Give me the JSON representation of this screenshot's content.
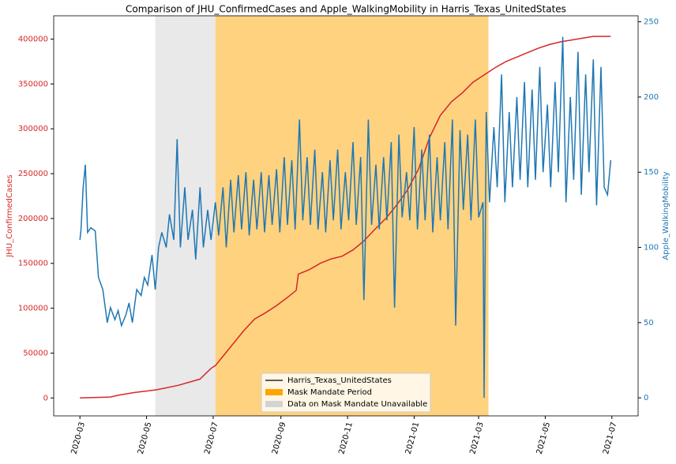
{
  "chart_data": {
    "type": "line",
    "title": "Comparison of JHU_ConfirmedCases and Apple_WalkingMobility in Harris_Texas_UnitedStates",
    "xlim": [
      -24,
      511
    ],
    "xticks": [
      {
        "value": 0,
        "label": "2020-03"
      },
      {
        "value": 61,
        "label": "2020-05"
      },
      {
        "value": 122,
        "label": "2020-07"
      },
      {
        "value": 184,
        "label": "2020-09"
      },
      {
        "value": 245,
        "label": "2020-11"
      },
      {
        "value": 306,
        "label": "2021-01"
      },
      {
        "value": 365,
        "label": "2021-03"
      },
      {
        "value": 426,
        "label": "2021-05"
      },
      {
        "value": 487,
        "label": "2021-07"
      }
    ],
    "ylim": [
      -20000,
      426000
    ],
    "yticks": [
      0,
      50000,
      100000,
      150000,
      200000,
      250000,
      300000,
      350000,
      400000
    ],
    "y2lim": [
      -12,
      254
    ],
    "y2ticks": [
      0,
      50,
      100,
      150,
      200,
      250
    ],
    "series": [
      {
        "name": "JHU_ConfirmedCases",
        "color": "#d62728",
        "x": [
          0,
          28,
          35,
          50,
          70,
          90,
          110,
          120,
          124,
          130,
          140,
          150,
          160,
          170,
          180,
          190,
          198,
          200,
          210,
          220,
          230,
          240,
          250,
          260,
          270,
          280,
          290,
          300,
          310,
          320,
          330,
          340,
          350,
          360,
          370,
          380,
          390,
          400,
          410,
          420,
          430,
          440,
          450,
          460,
          470,
          480,
          486
        ],
        "values": [
          0,
          1000,
          3000,
          6000,
          9000,
          14000,
          21000,
          33000,
          36000,
          45000,
          60000,
          75000,
          88000,
          95000,
          103000,
          112000,
          120000,
          138000,
          143000,
          150000,
          155000,
          158000,
          165000,
          175000,
          188000,
          200000,
          215000,
          232000,
          255000,
          290000,
          315000,
          330000,
          340000,
          352000,
          360000,
          368000,
          375000,
          380000,
          385000,
          390000,
          394000,
          397000,
          399000,
          401000,
          403000,
          403000,
          403000
        ]
      },
      {
        "name": "Apple_WalkingMobility",
        "color": "#1f77b4",
        "axis": "y2",
        "x": [
          0,
          1,
          3,
          5,
          7,
          10,
          14,
          17,
          21,
          25,
          28,
          32,
          35,
          38,
          42,
          45,
          48,
          52,
          56,
          59,
          62,
          66,
          69,
          72,
          75,
          79,
          82,
          86,
          89,
          92,
          96,
          99,
          103,
          106,
          110,
          113,
          117,
          120,
          124,
          127,
          131,
          134,
          138,
          141,
          145,
          148,
          152,
          155,
          159,
          162,
          166,
          169,
          173,
          176,
          180,
          183,
          187,
          190,
          194,
          197,
          201,
          204,
          208,
          211,
          215,
          218,
          222,
          225,
          229,
          232,
          236,
          239,
          243,
          246,
          250,
          253,
          257,
          260,
          264,
          267,
          271,
          274,
          278,
          281,
          285,
          288,
          292,
          295,
          299,
          302,
          306,
          309,
          313,
          316,
          320,
          323,
          327,
          330,
          334,
          337,
          341,
          344,
          348,
          351,
          355,
          358,
          362,
          365,
          369,
          370,
          372,
          375,
          379,
          382,
          386,
          389,
          393,
          396,
          400,
          403,
          407,
          410,
          414,
          417,
          421,
          424,
          428,
          431,
          435,
          438,
          442,
          445,
          449,
          452,
          456,
          459,
          463,
          466,
          470,
          473,
          477,
          480,
          483,
          486
        ],
        "values": [
          105,
          112,
          140,
          155,
          110,
          113,
          111,
          80,
          72,
          50,
          60,
          52,
          58,
          48,
          55,
          63,
          50,
          72,
          68,
          80,
          75,
          95,
          72,
          100,
          110,
          100,
          122,
          105,
          172,
          100,
          140,
          105,
          125,
          92,
          140,
          100,
          125,
          105,
          130,
          108,
          140,
          100,
          145,
          110,
          148,
          112,
          150,
          108,
          145,
          112,
          150,
          110,
          148,
          115,
          152,
          110,
          160,
          115,
          158,
          112,
          185,
          118,
          160,
          115,
          165,
          112,
          150,
          110,
          158,
          118,
          165,
          112,
          150,
          118,
          170,
          115,
          160,
          65,
          185,
          115,
          155,
          112,
          160,
          118,
          170,
          60,
          175,
          120,
          150,
          118,
          180,
          112,
          165,
          118,
          175,
          110,
          160,
          118,
          170,
          112,
          185,
          48,
          178,
          125,
          175,
          118,
          185,
          120,
          130,
          0,
          190,
          130,
          180,
          140,
          215,
          130,
          190,
          140,
          200,
          145,
          210,
          140,
          205,
          145,
          220,
          150,
          195,
          140,
          210,
          150,
          240,
          130,
          200,
          145,
          230,
          135,
          215,
          150,
          225,
          128,
          220,
          140,
          135,
          158
        ]
      }
    ],
    "spans": [
      {
        "label": "Mask Mandate Period",
        "start": 124,
        "end": 374,
        "color": "#ffa500"
      },
      {
        "label": "Data on Mask Mandate Unavailable",
        "start": 69,
        "end": 124,
        "color": "#d3d3d3"
      }
    ],
    "legend": {
      "label": "Harris_Texas_UnitedStates",
      "color": "#000000"
    }
  }
}
